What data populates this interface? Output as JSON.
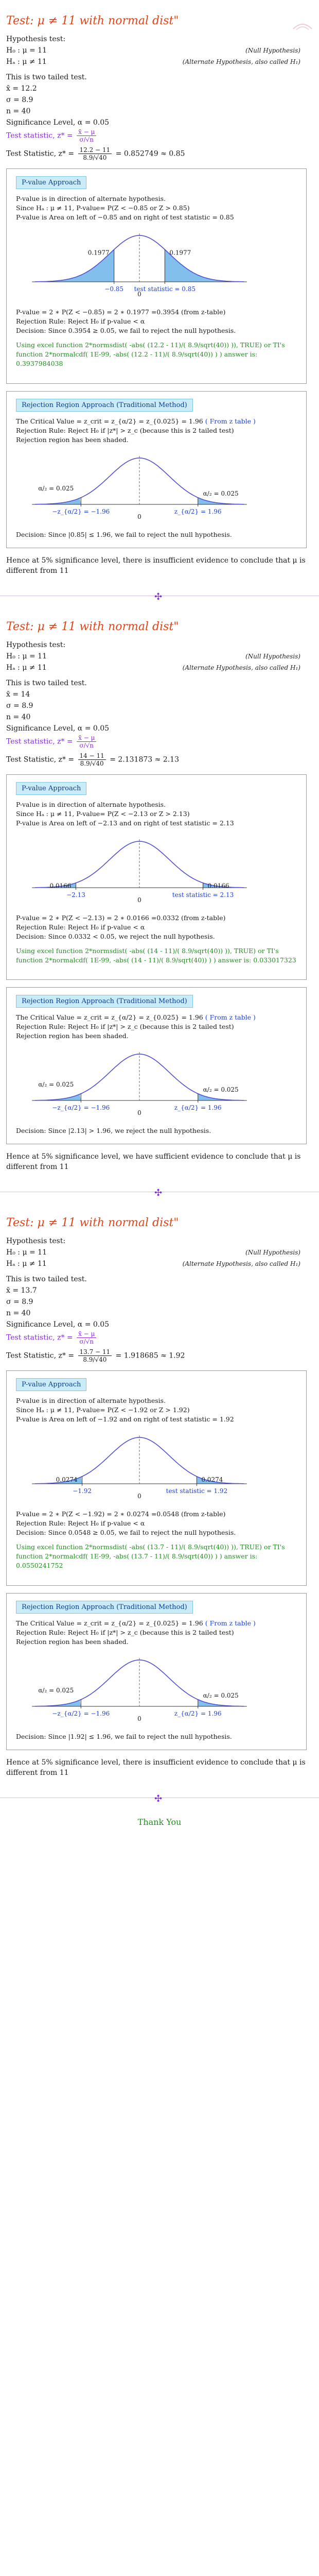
{
  "problems": [
    {
      "title": "Test: μ ≠ 11 with normal dist\"",
      "hypothesis_label": "Hypothesis test:",
      "h0": "H₀ : μ = 11",
      "ha": "Hₐ : μ ≠ 11",
      "h0_note": "(Null Hypothesis)",
      "ha_note": "(Alternate Hypothesis, also called H₁)",
      "tail": "This is two tailed test.",
      "xbar": "x̄ = 12.2",
      "sigma": "σ = 8.9",
      "n": "n = 40",
      "alpha": "Significance Level, α = 0.05",
      "test_stat_label": "Test statistic, z* =",
      "test_stat_formula_num": "x̄ − μ",
      "test_stat_formula_den": "σ/√n",
      "test_stat_value_prefix": "Test Statistic, z* =",
      "test_stat_num": "12.2 − 11",
      "test_stat_den": "8.9/√40",
      "test_stat_result": "= 0.852749 ≈ 0.85",
      "pvalue_badge": "P-value Approach",
      "pvalue_lines": [
        "P-value is in direction of alternate hypothesis.",
        "Since Hₐ : μ ≠ 11, P-value= P(Z < −0.85 or Z > 0.85)",
        "P-value is Area on left of −0.85 and on right of test statistic = 0.85"
      ],
      "pvalue_chart": {
        "left_label": "0.1977",
        "right_label": "0.1977",
        "zero": "0",
        "neg_label": "−0.85",
        "stat_label": "test statistic = 0.85",
        "stat": 0.85
      },
      "pvalue_calc": "P-value = 2 ∗ P(Z < −0.85) = 2 ∗ 0.1977 =0.3954 (from z-table)",
      "pvalue_rule": "Rejection Rule: Reject H₀ if p-value < α",
      "pvalue_decision": "Decision: Since 0.3954 ≥ 0.05, we fail to reject the null hypothesis.",
      "pvalue_excel": "Using excel function 2*normsdist( -abs( (12.2 - 11)/( 8.9/sqrt(40)) )), TRUE) or TI's function 2*normalcdf( 1E-99, -abs( (12.2 - 11)/( 8.9/sqrt(40)) ) ) answer is: 0.3937984038",
      "rr_badge": "Rejection Region Approach (Traditional Method)",
      "rr_crit": "The Critical Value = z_crit = z_{α/2} = z_{0.025} = 1.96",
      "rr_crit_note": "( From z table )",
      "rr_rule": "Rejection Rule: Reject H₀ if |z*| > z_c (because this is 2 tailed test)",
      "rr_shaded": "Rejection region has been shaded.",
      "rr_chart": {
        "left_alpha": "α/₂ = 0.025",
        "right_alpha": "α/₂ = 0.025",
        "neg_crit": "−z_{α/2} = −1.96",
        "pos_crit": "z_{α/2} = 1.96",
        "zero": "0"
      },
      "rr_decision": "Decision: Since |0.85| ≤ 1.96, we fail to reject the null hypothesis.",
      "conclusion": "Hence at 5% significance level, there is insufficient evidence to conclude that μ is different from 11"
    },
    {
      "title": "Test: μ ≠ 11 with normal dist\"",
      "hypothesis_label": "Hypothesis test:",
      "h0": "H₀ : μ = 11",
      "ha": "Hₐ : μ ≠ 11",
      "h0_note": "(Null Hypothesis)",
      "ha_note": "(Alternate Hypothesis, also called H₁)",
      "tail": "This is two tailed test.",
      "xbar": "x̄ = 14",
      "sigma": "σ = 8.9",
      "n": "n = 40",
      "alpha": "Significance Level, α = 0.05",
      "test_stat_label": "Test statistic, z* =",
      "test_stat_formula_num": "x̄ − μ",
      "test_stat_formula_den": "σ/√n",
      "test_stat_value_prefix": "Test Statistic, z* =",
      "test_stat_num": "14 − 11",
      "test_stat_den": "8.9/√40",
      "test_stat_result": "= 2.131873 ≈ 2.13",
      "pvalue_badge": "P-value Approach",
      "pvalue_lines": [
        "P-value is in direction of alternate hypothesis.",
        "Since Hₐ : μ ≠ 11, P-value= P(Z < −2.13 or Z > 2.13)",
        "P-value is Area on left of −2.13 and on right of test statistic = 2.13"
      ],
      "pvalue_chart": {
        "left_label": "0.0166",
        "right_label": "0.0166",
        "zero": "0",
        "neg_label": "−2.13",
        "stat_label": "test statistic = 2.13",
        "stat": 2.13
      },
      "pvalue_calc": "P-value = 2 ∗ P(Z < −2.13) = 2 ∗ 0.0166 =0.0332 (from z-table)",
      "pvalue_rule": "Rejection Rule: Reject H₀ if p-value < α",
      "pvalue_decision": "Decision: Since 0.0332 < 0.05, we reject the null hypothesis.",
      "pvalue_excel": "Using excel function 2*normsdist( -abs( (14 - 11)/( 8.9/sqrt(40)) )), TRUE) or TI's function 2*normalcdf( 1E-99, -abs( (14 - 11)/( 8.9/sqrt(40)) ) ) answer is: 0.033017323",
      "rr_badge": "Rejection Region Approach (Traditional Method)",
      "rr_crit": "The Critical Value = z_crit = z_{α/2} = z_{0.025} = 1.96",
      "rr_crit_note": "( From z table )",
      "rr_rule": "Rejection Rule: Reject H₀ if |z*| > z_c (because this is 2 tailed test)",
      "rr_shaded": "Rejection region has been shaded.",
      "rr_chart": {
        "left_alpha": "α/₂ = 0.025",
        "right_alpha": "α/₂ = 0.025",
        "neg_crit": "−z_{α/2} = −1.96",
        "pos_crit": "z_{α/2} = 1.96",
        "zero": "0"
      },
      "rr_decision": "Decision: Since |2.13| > 1.96, we reject the null hypothesis.",
      "conclusion": "Hence at 5% significance level, we have sufficient evidence to conclude that μ is different from 11"
    },
    {
      "title": "Test: μ ≠ 11 with normal dist\"",
      "hypothesis_label": "Hypothesis test:",
      "h0": "H₀ : μ = 11",
      "ha": "Hₐ : μ ≠ 11",
      "h0_note": "(Null Hypothesis)",
      "ha_note": "(Alternate Hypothesis, also called H₁)",
      "tail": "This is two tailed test.",
      "xbar": "x̄ = 13.7",
      "sigma": "σ = 8.9",
      "n": "n = 40",
      "alpha": "Significance Level, α = 0.05",
      "test_stat_label": "Test statistic, z* =",
      "test_stat_formula_num": "x̄ − μ",
      "test_stat_formula_den": "σ/√n",
      "test_stat_value_prefix": "Test Statistic, z* =",
      "test_stat_num": "13.7 − 11",
      "test_stat_den": "8.9/√40",
      "test_stat_result": "= 1.918685 ≈ 1.92",
      "pvalue_badge": "P-value Approach",
      "pvalue_lines": [
        "P-value is in direction of alternate hypothesis.",
        "Since Hₐ : μ ≠ 11, P-value= P(Z < −1.92 or Z > 1.92)",
        "P-value is Area on left of −1.92 and on right of test statistic = 1.92"
      ],
      "pvalue_chart": {
        "left_label": "0.0274",
        "right_label": "0.0274",
        "zero": "0",
        "neg_label": "−1.92",
        "stat_label": "test statistic = 1.92",
        "stat": 1.92
      },
      "pvalue_calc": "P-value = 2 ∗ P(Z < −1.92) = 2 ∗ 0.0274 =0.0548 (from z-table)",
      "pvalue_rule": "Rejection Rule: Reject H₀ if p-value < α",
      "pvalue_decision": "Decision: Since 0.0548 ≥ 0.05, we fail to reject the null hypothesis.",
      "pvalue_excel": "Using excel function 2*normsdist( -abs( (13.7 - 11)/( 8.9/sqrt(40)) )), TRUE) or TI's function 2*normalcdf( 1E-99, -abs( (13.7 - 11)/( 8.9/sqrt(40)) ) ) answer is: 0.0550241752",
      "rr_badge": "Rejection Region Approach (Traditional Method)",
      "rr_crit": "The Critical Value = z_crit = z_{α/2} = z_{0.025} = 1.96",
      "rr_crit_note": "( From z table )",
      "rr_rule": "Rejection Rule: Reject H₀ if |z*| > z_c (because this is 2 tailed test)",
      "rr_shaded": "Rejection region has been shaded.",
      "rr_chart": {
        "left_alpha": "α/₂ = 0.025",
        "right_alpha": "α/₂ = 0.025",
        "neg_crit": "−z_{α/2} = −1.96",
        "pos_crit": "z_{α/2} = 1.96",
        "zero": "0"
      },
      "rr_decision": "Decision: Since |1.92| ≤ 1.96, we fail to reject the null hypothesis.",
      "conclusion": "Hence at 5% significance level, there is insufficient evidence to conclude that μ is different from 11"
    }
  ],
  "footer": {
    "thank_you": "Thank You"
  },
  "colors": {
    "title": "#e0461a",
    "purple": "#8a2be2",
    "green": "#1e8f1e",
    "badge_bg": "#c9ecf8",
    "curve": "#5050d0",
    "shade": "#5aa9e6"
  }
}
